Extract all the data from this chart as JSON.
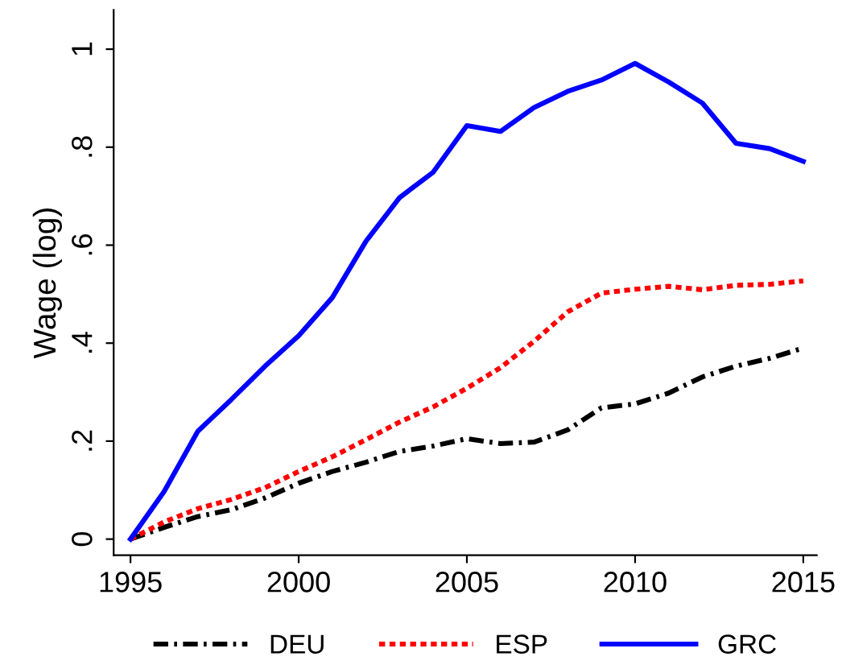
{
  "chart_data": {
    "type": "line",
    "ylabel": "Wage (log)",
    "x": [
      1995,
      1996,
      1997,
      1998,
      1999,
      2000,
      2001,
      2002,
      2003,
      2004,
      2005,
      2006,
      2007,
      2008,
      2009,
      2010,
      2011,
      2012,
      2013,
      2014,
      2015
    ],
    "series": [
      {
        "name": "DEU",
        "color": "#000000",
        "line_style": "dashdot",
        "values": [
          0,
          0.024,
          0.046,
          0.06,
          0.084,
          0.114,
          0.138,
          0.157,
          0.179,
          0.19,
          0.205,
          0.195,
          0.198,
          0.223,
          0.268,
          0.276,
          0.298,
          0.331,
          0.353,
          0.369,
          0.39
        ]
      },
      {
        "name": "ESP",
        "color": "#ff0000",
        "line_style": "dotted",
        "values": [
          0,
          0.035,
          0.062,
          0.081,
          0.105,
          0.138,
          0.168,
          0.203,
          0.239,
          0.27,
          0.308,
          0.35,
          0.404,
          0.464,
          0.502,
          0.51,
          0.516,
          0.509,
          0.518,
          0.52,
          0.527
        ]
      },
      {
        "name": "GRC",
        "color": "#0000ff",
        "line_style": "solid",
        "values": [
          0,
          0.097,
          0.22,
          0.285,
          0.353,
          0.415,
          0.493,
          0.608,
          0.697,
          0.749,
          0.844,
          0.832,
          0.881,
          0.914,
          0.937,
          0.971,
          0.933,
          0.89,
          0.808,
          0.797,
          0.771
        ]
      }
    ],
    "xlim": [
      1994.5,
      2015.4
    ],
    "xticks": [
      1995,
      2000,
      2005,
      2010,
      2015
    ],
    "ylim": [
      -0.033,
      1.08
    ],
    "yticks": [
      0,
      {
        "value": 0.2,
        "label": ".2"
      },
      {
        "value": 0.4,
        "label": ".4"
      },
      {
        "value": 0.6,
        "label": ".6"
      },
      {
        "value": 0.8,
        "label": ".8"
      },
      {
        "value": 1,
        "label": "1"
      }
    ],
    "grid": false,
    "legend": "bottom"
  }
}
